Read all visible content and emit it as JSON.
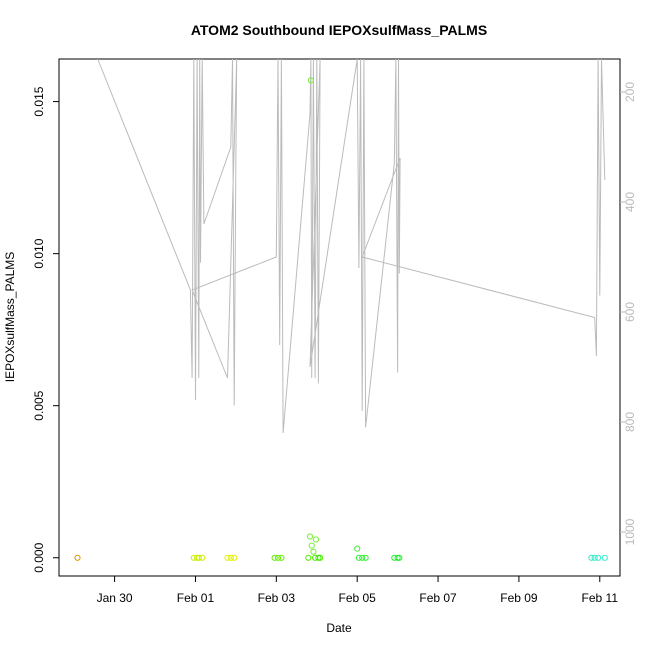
{
  "chart_data": {
    "type": "scatter",
    "title": "ATOM2 Southbound IEPOXsulfMass_PALMS",
    "xlabel": "Date",
    "ylabel": "IEPOXsulfMass_PALMS",
    "x_ticks": [
      {
        "date": "2017-01-30",
        "label": "Jan 30"
      },
      {
        "date": "2017-02-01",
        "label": "Feb 01"
      },
      {
        "date": "2017-02-03",
        "label": "Feb 03"
      },
      {
        "date": "2017-02-05",
        "label": "Feb 05"
      },
      {
        "date": "2017-02-07",
        "label": "Feb 07"
      },
      {
        "date": "2017-02-09",
        "label": "Feb 09"
      },
      {
        "date": "2017-02-11",
        "label": "Feb 11"
      }
    ],
    "xlim": [
      "2017-01-28T15:00",
      "2017-02-11T12:00"
    ],
    "ylim": [
      -0.0006,
      0.0164
    ],
    "y_ticks": [
      {
        "value": 0.0,
        "label": "0.000"
      },
      {
        "value": 0.005,
        "label": "0.005"
      },
      {
        "value": 0.01,
        "label": "0.010"
      },
      {
        "value": 0.015,
        "label": "0.015"
      }
    ],
    "y2_ticks": [
      {
        "value": 200,
        "label": "200"
      },
      {
        "value": 400,
        "label": "400"
      },
      {
        "value": 600,
        "label": "600"
      },
      {
        "value": 800,
        "label": "800"
      },
      {
        "value": 1000,
        "label": "1000"
      }
    ],
    "y2lim": [
      1080,
      140
    ],
    "grid": false,
    "points": [
      {
        "x": "2017-01-29T02:00",
        "y": 0.0,
        "color": "#e69500"
      },
      {
        "x": "2017-01-31T23:00",
        "y": 0.0,
        "color": "#ccee00"
      },
      {
        "x": "2017-02-01T01:00",
        "y": 0.0,
        "color": "#ccee00"
      },
      {
        "x": "2017-02-01T02:00",
        "y": 0.0,
        "color": "#ccee00"
      },
      {
        "x": "2017-02-01T04:00",
        "y": 0.0,
        "color": "#ccee00"
      },
      {
        "x": "2017-02-01T19:00",
        "y": 0.0,
        "color": "#e6ee00"
      },
      {
        "x": "2017-02-01T21:00",
        "y": 0.0,
        "color": "#e6ee00"
      },
      {
        "x": "2017-02-01T23:00",
        "y": 0.0,
        "color": "#e6ee00"
      },
      {
        "x": "2017-02-02T23:00",
        "y": 0.0,
        "color": "#66ee00"
      },
      {
        "x": "2017-02-03T01:00",
        "y": 0.0,
        "color": "#66ee00"
      },
      {
        "x": "2017-02-03T03:00",
        "y": 0.0,
        "color": "#66ee00"
      },
      {
        "x": "2017-02-03T19:00",
        "y": 0.0,
        "color": "#55ee00"
      },
      {
        "x": "2017-02-03T20:00",
        "y": 0.0007,
        "color": "#77ee33"
      },
      {
        "x": "2017-02-03T21:00",
        "y": 0.0004,
        "color": "#77ee33"
      },
      {
        "x": "2017-02-03T22:00",
        "y": 0.0002,
        "color": "#77ee33"
      },
      {
        "x": "2017-02-03T23:00",
        "y": 0.0,
        "color": "#44ee00"
      },
      {
        "x": "2017-02-03T20:30",
        "y": 0.0157,
        "color": "#77ee33"
      },
      {
        "x": "2017-02-03T23:30",
        "y": 0.0006,
        "color": "#77ee33"
      },
      {
        "x": "2017-02-04T01:00",
        "y": 0.0,
        "color": "#44ee00"
      },
      {
        "x": "2017-02-04T02:00",
        "y": 0.0,
        "color": "#44ee00"
      },
      {
        "x": "2017-02-05T00:00",
        "y": 0.0003,
        "color": "#44ee33"
      },
      {
        "x": "2017-02-05T01:00",
        "y": 0.0,
        "color": "#33ee33"
      },
      {
        "x": "2017-02-05T03:00",
        "y": 0.0,
        "color": "#33ee33"
      },
      {
        "x": "2017-02-05T05:00",
        "y": 0.0,
        "color": "#33ee33"
      },
      {
        "x": "2017-02-05T22:00",
        "y": 0.0,
        "color": "#22ee33"
      },
      {
        "x": "2017-02-06T00:00",
        "y": 0.0,
        "color": "#22ee33"
      },
      {
        "x": "2017-02-06T01:00",
        "y": 0.0,
        "color": "#22ee33"
      },
      {
        "x": "2017-02-10T19:00",
        "y": 0.0,
        "color": "#33eecc"
      },
      {
        "x": "2017-02-10T21:00",
        "y": 0.0,
        "color": "#33eecc"
      },
      {
        "x": "2017-02-10T23:00",
        "y": 0.0,
        "color": "#33eecc"
      },
      {
        "x": "2017-02-11T03:00",
        "y": 0.0,
        "color": "#33eecc"
      }
    ],
    "secondary_line": {
      "color": "#bbbbbb",
      "axis": "right",
      "points": [
        [
          "2017-01-29T14:00",
          140
        ],
        [
          "2017-01-31T21:00",
          560
        ],
        [
          "2017-01-31T22:00",
          720
        ],
        [
          "2017-01-31T23:00",
          140
        ],
        [
          "2017-02-01T00:00",
          760
        ],
        [
          "2017-02-01T01:00",
          140
        ],
        [
          "2017-02-01T02:00",
          720
        ],
        [
          "2017-02-01T02:30",
          140
        ],
        [
          "2017-02-01T03:00",
          510
        ],
        [
          "2017-02-01T04:00",
          140
        ],
        [
          "2017-02-01T05:00",
          440
        ],
        [
          "2017-02-01T21:00",
          300
        ],
        [
          "2017-02-01T22:00",
          140
        ],
        [
          "2017-02-01T23:00",
          770
        ],
        [
          "2017-02-02T00:00",
          320
        ],
        [
          "2017-02-02T00:30",
          140
        ],
        [
          "2017-02-01T19:00",
          720
        ],
        [
          "2017-01-31T22:00",
          560
        ],
        [
          "2017-02-03T00:00",
          500
        ],
        [
          "2017-02-03T01:00",
          140
        ],
        [
          "2017-02-03T02:00",
          660
        ],
        [
          "2017-02-03T03:00",
          140
        ],
        [
          "2017-02-03T04:00",
          820
        ],
        [
          "2017-02-03T20:00",
          240
        ],
        [
          "2017-02-03T20:30",
          140
        ],
        [
          "2017-02-03T21:00",
          720
        ],
        [
          "2017-02-03T22:00",
          140
        ],
        [
          "2017-02-03T23:00",
          720
        ],
        [
          "2017-02-04T00:00",
          140
        ],
        [
          "2017-02-04T01:00",
          730
        ],
        [
          "2017-02-04T02:00",
          140
        ],
        [
          "2017-02-03T20:00",
          700
        ],
        [
          "2017-02-05T00:00",
          140
        ],
        [
          "2017-02-05T01:00",
          520
        ],
        [
          "2017-02-05T02:00",
          140
        ],
        [
          "2017-02-05T03:00",
          780
        ],
        [
          "2017-02-05T04:00",
          140
        ],
        [
          "2017-02-05T05:00",
          810
        ],
        [
          "2017-02-05T22:00",
          330
        ],
        [
          "2017-02-05T23:00",
          140
        ],
        [
          "2017-02-06T00:00",
          710
        ],
        [
          "2017-02-06T00:30",
          140
        ],
        [
          "2017-02-06T01:00",
          530
        ],
        [
          "2017-02-06T01:30",
          320
        ],
        [
          "2017-02-05T03:00",
          500
        ],
        [
          "2017-02-10T21:00",
          610
        ],
        [
          "2017-02-10T22:00",
          680
        ],
        [
          "2017-02-10T23:00",
          140
        ],
        [
          "2017-02-11T00:00",
          570
        ],
        [
          "2017-02-11T01:00",
          140
        ],
        [
          "2017-02-11T03:00",
          360
        ]
      ]
    }
  }
}
